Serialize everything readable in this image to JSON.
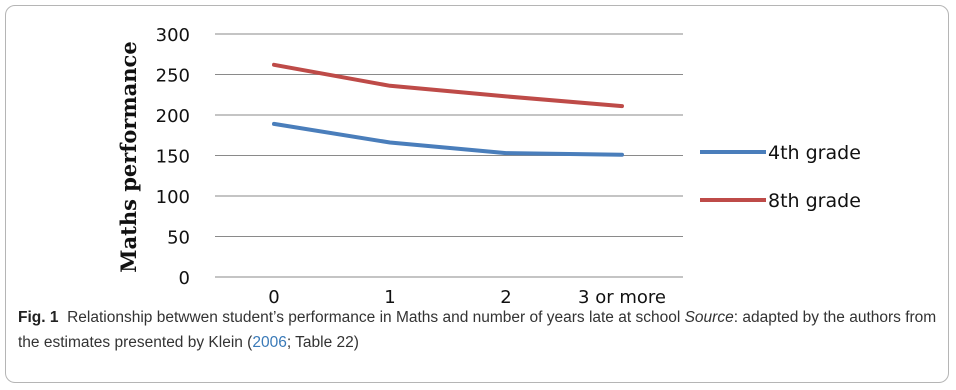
{
  "chart_data": {
    "type": "line",
    "categories": [
      "0",
      "1",
      "2",
      "3 or more"
    ],
    "series": [
      {
        "name": "4th grade",
        "values": [
          189,
          166,
          153,
          151
        ],
        "color": "#4a7ebb"
      },
      {
        "name": "8th grade",
        "values": [
          262,
          236,
          223,
          211
        ],
        "color": "#be4b48"
      }
    ],
    "title": "",
    "xlabel": "",
    "ylabel": "Maths  performance",
    "ylim": [
      0,
      300
    ],
    "yticks": [
      "0",
      "50",
      "100",
      "150",
      "200",
      "250",
      "300"
    ],
    "grid": true,
    "legend": "right"
  },
  "caption": {
    "fig_label": "Fig. 1",
    "text_a": "Relationship betwwen student’s performance in Maths and number of years late at school ",
    "source_word": "Source",
    "text_b": ": adapted by the authors from the estimates presented by Klein (",
    "cite_year": "2006",
    "text_c": "; Table 22)"
  }
}
